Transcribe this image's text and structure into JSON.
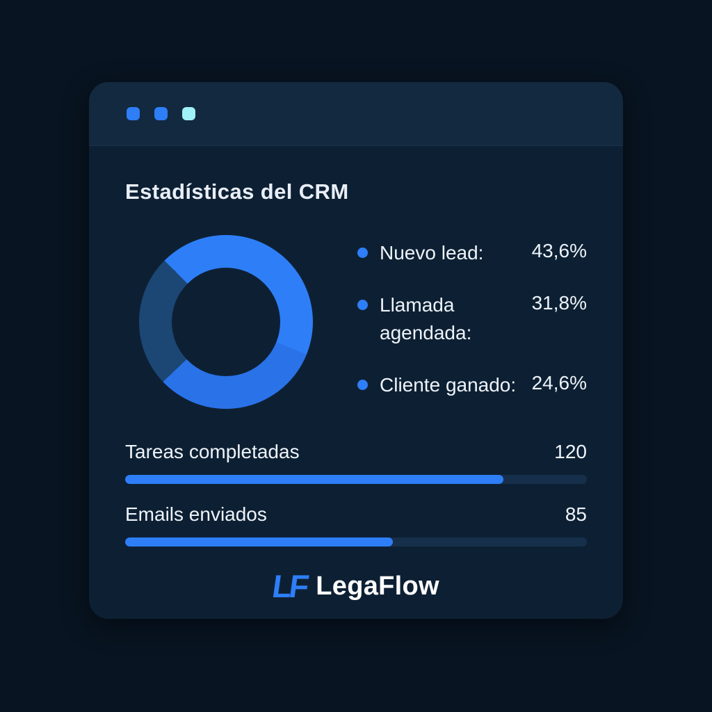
{
  "window": {
    "dots": [
      "#2e7ef7",
      "#2e7ef7",
      "#9ff0f7"
    ]
  },
  "theme": {
    "background": "#081421",
    "card": "#0d2033",
    "titlebar": "#13293f",
    "accent": "#2e7ef7",
    "text": "#eef3f9"
  },
  "chart_data": [
    {
      "type": "pie",
      "donut": true,
      "title": "Estadísticas del CRM",
      "labels": [
        "Nuevo lead:",
        "Llamada agendada:",
        "Cliente ganado:"
      ],
      "values": [
        43.6,
        31.8,
        24.6
      ],
      "display_values": [
        "43,6%",
        "31,8%",
        "24,6%"
      ],
      "colors": [
        "#2e7ef7",
        "#2a72e8",
        "#1c4674"
      ],
      "start_angle": 315,
      "legend_position": "right"
    },
    {
      "type": "bar",
      "categories": [
        "Tareas completadas",
        "Emails enviados"
      ],
      "values": [
        120,
        85
      ],
      "display_values": [
        "120",
        "85"
      ],
      "fill_percents": [
        82,
        58
      ],
      "bar_color": "#2e7ef7",
      "track_color": "#16304b"
    }
  ],
  "logo": {
    "monogram": "LF",
    "text": "LegaFlow"
  }
}
